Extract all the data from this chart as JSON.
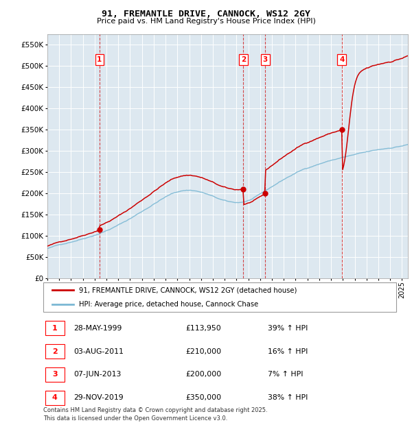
{
  "title": "91, FREMANTLE DRIVE, CANNOCK, WS12 2GY",
  "subtitle": "Price paid vs. HM Land Registry's House Price Index (HPI)",
  "ylim": [
    0,
    575000
  ],
  "yticks": [
    0,
    50000,
    100000,
    150000,
    200000,
    250000,
    300000,
    350000,
    400000,
    450000,
    500000,
    550000
  ],
  "ytick_labels": [
    "£0",
    "£50K",
    "£100K",
    "£150K",
    "£200K",
    "£250K",
    "£300K",
    "£350K",
    "£400K",
    "£450K",
    "£500K",
    "£550K"
  ],
  "xlim_start": 1995.0,
  "xlim_end": 2025.5,
  "sale_dates": [
    1999.41,
    2011.58,
    2013.44,
    2019.91
  ],
  "sale_prices": [
    113950,
    210000,
    200000,
    350000
  ],
  "sale_labels": [
    "1",
    "2",
    "3",
    "4"
  ],
  "hpi_color": "#7bb8d4",
  "price_color": "#cc0000",
  "background_color": "#dde8f0",
  "grid_color": "#ffffff",
  "legend_label_price": "91, FREMANTLE DRIVE, CANNOCK, WS12 2GY (detached house)",
  "legend_label_hpi": "HPI: Average price, detached house, Cannock Chase",
  "table_data": [
    [
      "1",
      "28-MAY-1999",
      "£113,950",
      "39% ↑ HPI"
    ],
    [
      "2",
      "03-AUG-2011",
      "£210,000",
      "16% ↑ HPI"
    ],
    [
      "3",
      "07-JUN-2013",
      "£200,000",
      "7% ↑ HPI"
    ],
    [
      "4",
      "29-NOV-2019",
      "£350,000",
      "38% ↑ HPI"
    ]
  ],
  "footer": "Contains HM Land Registry data © Crown copyright and database right 2025.\nThis data is licensed under the Open Government Licence v3.0."
}
